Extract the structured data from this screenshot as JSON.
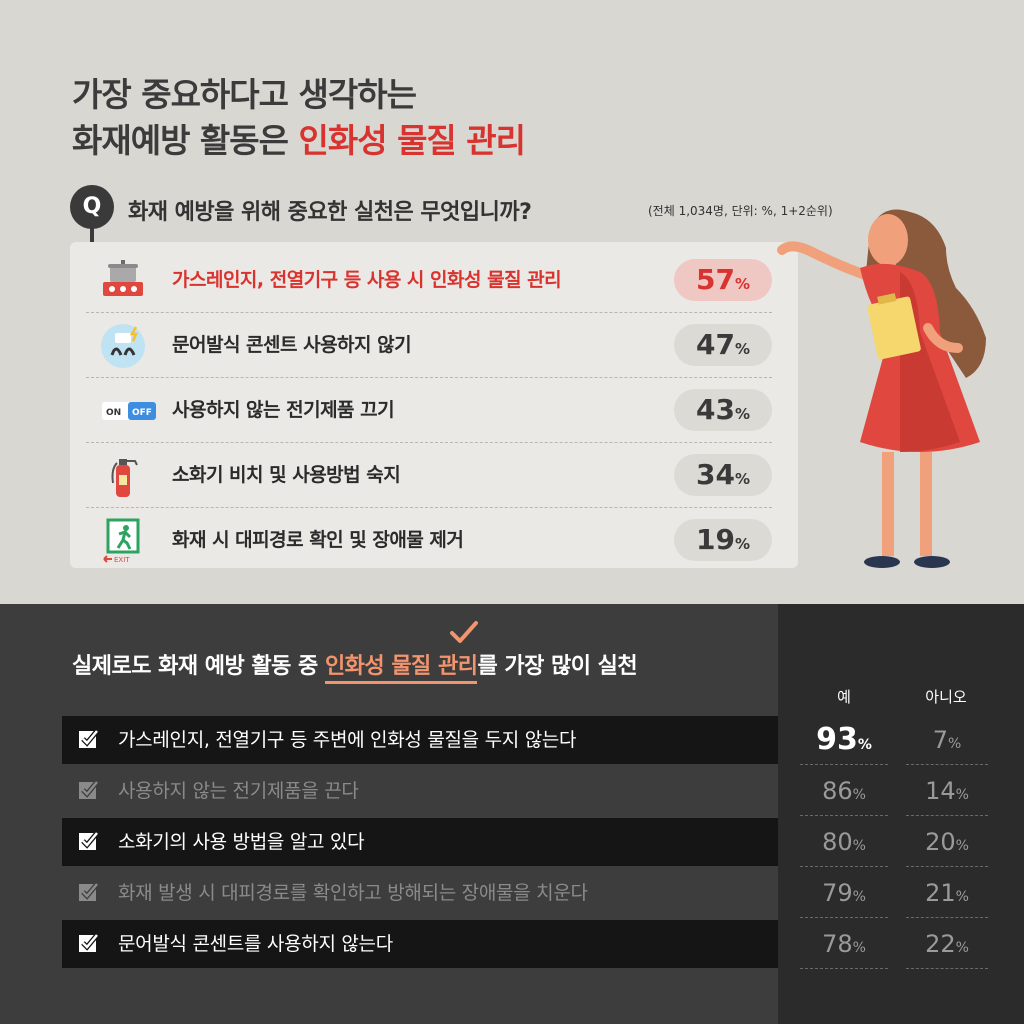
{
  "headline": {
    "line1": "가장 중요하다고 생각하는",
    "line2_prefix": "화재예방 활동은 ",
    "line2_highlight": "인화성 물질 관리"
  },
  "question": {
    "badge": "Q",
    "text": "화재 예방을 위해 중요한 실천은 무엇입니까?",
    "note": "(전체 1,034명, 단위: %, 1+2순위)"
  },
  "chart_data": [
    {
      "type": "table",
      "categories": [
        "가스레인지, 전열기구 등 사용 시 인화성 물질 관리",
        "문어발식 콘센트 사용하지 않기",
        "사용하지 않는 전기제품 끄기",
        "소화기 비치 및 사용방법 숙지",
        "화재 시 대피경로 확인 및 장애물 제거"
      ],
      "values": [
        57,
        47,
        43,
        34,
        19
      ],
      "unit": "%",
      "icons": [
        "stove-icon",
        "multi-plug-icon",
        "on-off-switch-icon",
        "fire-extinguisher-icon",
        "exit-sign-icon"
      ]
    },
    {
      "type": "table",
      "categories": [
        "가스레인지, 전열기구 등 주변에 인화성 물질을 두지 않는다",
        "사용하지 않는 전기제품을 끈다",
        "소화기의 사용 방법을 알고 있다",
        "화재 발생 시 대피경로를 확인하고 방해되는 장애물을 치운다",
        "문어발식 콘센트를 사용하지 않는다"
      ],
      "series": [
        {
          "name": "예",
          "values": [
            93,
            86,
            80,
            79,
            78
          ]
        },
        {
          "name": "아니오",
          "values": [
            7,
            14,
            20,
            21,
            22
          ]
        }
      ],
      "unit": "%"
    }
  ],
  "switch_labels": {
    "on": "ON",
    "off": "OFF"
  },
  "exit_label": "EXIT",
  "subhead": {
    "prefix": "실제로도 화재 예방 활동 중 ",
    "highlight": "인화성 물질 관리",
    "suffix": "를 가장 많이 실천"
  },
  "colors": {
    "accent_red": "#d8332e",
    "accent_orange": "#f2956e",
    "top_bg": "#d9d7d2",
    "bottom_bg": "#3d3d3d"
  }
}
